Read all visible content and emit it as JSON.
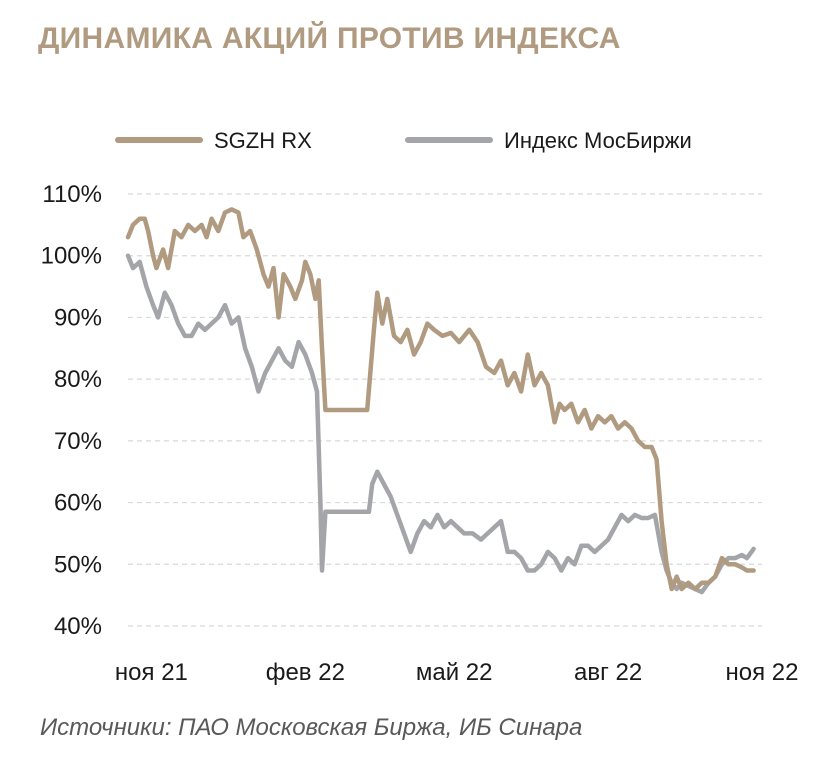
{
  "title": "ДИНАМИКА АКЦИЙ ПРОТИВ ИНДЕКСА",
  "source": "Источники: ПАО Московская Биржа, ИБ Синара",
  "colors": {
    "title": "#b09a80",
    "sgzh": "#b09a80",
    "index": "#a3a5a8",
    "grid": "#d9d9d9"
  },
  "chart_data": {
    "type": "line",
    "title": "ДИНАМИКА АКЦИЙ ПРОТИВ ИНДЕКСА",
    "xlabel": "",
    "ylabel": "",
    "ylim": [
      40,
      110
    ],
    "y_ticks": [
      40,
      50,
      60,
      70,
      80,
      90,
      100,
      110
    ],
    "y_tick_labels": [
      "40%",
      "50%",
      "60%",
      "70%",
      "80%",
      "90%",
      "100%",
      "110%"
    ],
    "x_range": [
      "2021-11-01",
      "2022-11-15"
    ],
    "x_ticks": [
      "2021-11-15",
      "2022-02-15",
      "2022-05-15",
      "2022-08-15",
      "2022-11-15"
    ],
    "x_tick_labels": [
      "ноя 21",
      "фев 22",
      "май 22",
      "авг 22",
      "ноя 22"
    ],
    "grid": "horizontal",
    "legend_position": "top",
    "series": [
      {
        "name": "SGZH RX",
        "color": "#b09a80",
        "points": [
          [
            "2021-11-01",
            103
          ],
          [
            "2021-11-04",
            105
          ],
          [
            "2021-11-08",
            106
          ],
          [
            "2021-11-11",
            106
          ],
          [
            "2021-11-13",
            104
          ],
          [
            "2021-11-16",
            100
          ],
          [
            "2021-11-18",
            98
          ],
          [
            "2021-11-22",
            101
          ],
          [
            "2021-11-25",
            98
          ],
          [
            "2021-11-29",
            104
          ],
          [
            "2021-12-03",
            103
          ],
          [
            "2021-12-07",
            105
          ],
          [
            "2021-12-11",
            104
          ],
          [
            "2021-12-15",
            105
          ],
          [
            "2021-12-18",
            103
          ],
          [
            "2021-12-21",
            106
          ],
          [
            "2021-12-25",
            104
          ],
          [
            "2021-12-29",
            107
          ],
          [
            "2022-01-02",
            107.5
          ],
          [
            "2022-01-06",
            107
          ],
          [
            "2022-01-09",
            103
          ],
          [
            "2022-01-13",
            104
          ],
          [
            "2022-01-17",
            101
          ],
          [
            "2022-01-21",
            97
          ],
          [
            "2022-01-24",
            95
          ],
          [
            "2022-01-27",
            98
          ],
          [
            "2022-01-30",
            90
          ],
          [
            "2022-02-02",
            97
          ],
          [
            "2022-02-06",
            95
          ],
          [
            "2022-02-09",
            93
          ],
          [
            "2022-02-13",
            96
          ],
          [
            "2022-02-15",
            99
          ],
          [
            "2022-02-18",
            97
          ],
          [
            "2022-02-21",
            93
          ],
          [
            "2022-02-23",
            96
          ],
          [
            "2022-02-25",
            85
          ],
          [
            "2022-02-27",
            75
          ],
          [
            "2022-03-05",
            75
          ],
          [
            "2022-03-15",
            75
          ],
          [
            "2022-03-24",
            75
          ],
          [
            "2022-03-28",
            88
          ],
          [
            "2022-03-30",
            94
          ],
          [
            "2022-04-02",
            89
          ],
          [
            "2022-04-05",
            93
          ],
          [
            "2022-04-09",
            87
          ],
          [
            "2022-04-13",
            86
          ],
          [
            "2022-04-17",
            88
          ],
          [
            "2022-04-21",
            84
          ],
          [
            "2022-04-25",
            86
          ],
          [
            "2022-04-29",
            89
          ],
          [
            "2022-05-03",
            88
          ],
          [
            "2022-05-08",
            87
          ],
          [
            "2022-05-13",
            87.5
          ],
          [
            "2022-05-18",
            86
          ],
          [
            "2022-05-24",
            88
          ],
          [
            "2022-05-29",
            86
          ],
          [
            "2022-06-03",
            82
          ],
          [
            "2022-06-08",
            81
          ],
          [
            "2022-06-12",
            83
          ],
          [
            "2022-06-16",
            79
          ],
          [
            "2022-06-20",
            81
          ],
          [
            "2022-06-24",
            78
          ],
          [
            "2022-06-28",
            84
          ],
          [
            "2022-07-02",
            79
          ],
          [
            "2022-07-06",
            81
          ],
          [
            "2022-07-10",
            79
          ],
          [
            "2022-07-14",
            73
          ],
          [
            "2022-07-17",
            76
          ],
          [
            "2022-07-20",
            75
          ],
          [
            "2022-07-24",
            76
          ],
          [
            "2022-07-28",
            73
          ],
          [
            "2022-08-01",
            75
          ],
          [
            "2022-08-05",
            72
          ],
          [
            "2022-08-09",
            74
          ],
          [
            "2022-08-13",
            73
          ],
          [
            "2022-08-17",
            74
          ],
          [
            "2022-08-21",
            72
          ],
          [
            "2022-08-25",
            73
          ],
          [
            "2022-08-29",
            72
          ],
          [
            "2022-09-02",
            70
          ],
          [
            "2022-09-06",
            69
          ],
          [
            "2022-09-10",
            69
          ],
          [
            "2022-09-13",
            67
          ],
          [
            "2022-09-16",
            57
          ],
          [
            "2022-09-19",
            50
          ],
          [
            "2022-09-22",
            46
          ],
          [
            "2022-09-25",
            48
          ],
          [
            "2022-09-28",
            46
          ],
          [
            "2022-10-02",
            47
          ],
          [
            "2022-10-06",
            46
          ],
          [
            "2022-10-10",
            47
          ],
          [
            "2022-10-14",
            47
          ],
          [
            "2022-10-18",
            48
          ],
          [
            "2022-10-22",
            51
          ],
          [
            "2022-10-26",
            50
          ],
          [
            "2022-10-30",
            50
          ],
          [
            "2022-11-03",
            49.5
          ],
          [
            "2022-11-06",
            49
          ],
          [
            "2022-11-10",
            49
          ]
        ]
      },
      {
        "name": "Индекс МосБиржи",
        "color": "#a3a5a8",
        "points": [
          [
            "2021-11-01",
            100
          ],
          [
            "2021-11-04",
            98
          ],
          [
            "2021-11-08",
            99
          ],
          [
            "2021-11-12",
            95
          ],
          [
            "2021-11-16",
            92
          ],
          [
            "2021-11-19",
            90
          ],
          [
            "2021-11-23",
            94
          ],
          [
            "2021-11-27",
            92
          ],
          [
            "2021-12-01",
            89
          ],
          [
            "2021-12-05",
            87
          ],
          [
            "2021-12-09",
            87
          ],
          [
            "2021-12-13",
            89
          ],
          [
            "2021-12-17",
            88
          ],
          [
            "2021-12-21",
            89
          ],
          [
            "2021-12-25",
            90
          ],
          [
            "2021-12-29",
            92
          ],
          [
            "2022-01-02",
            89
          ],
          [
            "2022-01-06",
            90
          ],
          [
            "2022-01-10",
            85
          ],
          [
            "2022-01-14",
            82
          ],
          [
            "2022-01-18",
            78
          ],
          [
            "2022-01-22",
            81
          ],
          [
            "2022-01-26",
            83
          ],
          [
            "2022-01-30",
            85
          ],
          [
            "2022-02-03",
            83
          ],
          [
            "2022-02-07",
            82
          ],
          [
            "2022-02-11",
            86
          ],
          [
            "2022-02-15",
            84
          ],
          [
            "2022-02-19",
            81
          ],
          [
            "2022-02-22",
            78
          ],
          [
            "2022-02-24",
            60
          ],
          [
            "2022-02-25",
            49
          ],
          [
            "2022-02-27",
            58.5
          ],
          [
            "2022-03-10",
            58.5
          ],
          [
            "2022-03-20",
            58.5
          ],
          [
            "2022-03-25",
            58.5
          ],
          [
            "2022-03-27",
            63
          ],
          [
            "2022-03-30",
            65
          ],
          [
            "2022-04-03",
            63
          ],
          [
            "2022-04-07",
            61
          ],
          [
            "2022-04-11",
            58
          ],
          [
            "2022-04-15",
            55
          ],
          [
            "2022-04-19",
            52
          ],
          [
            "2022-04-23",
            55
          ],
          [
            "2022-04-27",
            57
          ],
          [
            "2022-05-01",
            56
          ],
          [
            "2022-05-05",
            58
          ],
          [
            "2022-05-09",
            56
          ],
          [
            "2022-05-13",
            57
          ],
          [
            "2022-05-17",
            56
          ],
          [
            "2022-05-21",
            55
          ],
          [
            "2022-05-26",
            55
          ],
          [
            "2022-05-31",
            54
          ],
          [
            "2022-06-04",
            55
          ],
          [
            "2022-06-08",
            56
          ],
          [
            "2022-06-12",
            57
          ],
          [
            "2022-06-16",
            52
          ],
          [
            "2022-06-20",
            52
          ],
          [
            "2022-06-24",
            51
          ],
          [
            "2022-06-28",
            49
          ],
          [
            "2022-07-02",
            49
          ],
          [
            "2022-07-06",
            50
          ],
          [
            "2022-07-10",
            52
          ],
          [
            "2022-07-14",
            51
          ],
          [
            "2022-07-18",
            49
          ],
          [
            "2022-07-22",
            51
          ],
          [
            "2022-07-26",
            50
          ],
          [
            "2022-07-30",
            53
          ],
          [
            "2022-08-03",
            53
          ],
          [
            "2022-08-07",
            52
          ],
          [
            "2022-08-11",
            53
          ],
          [
            "2022-08-15",
            54
          ],
          [
            "2022-08-19",
            56
          ],
          [
            "2022-08-23",
            58
          ],
          [
            "2022-08-27",
            57
          ],
          [
            "2022-08-31",
            58
          ],
          [
            "2022-09-04",
            57.5
          ],
          [
            "2022-09-08",
            57.5
          ],
          [
            "2022-09-12",
            58
          ],
          [
            "2022-09-16",
            52
          ],
          [
            "2022-09-19",
            49
          ],
          [
            "2022-09-22",
            47
          ],
          [
            "2022-09-25",
            46
          ],
          [
            "2022-09-28",
            47
          ],
          [
            "2022-10-02",
            46.5
          ],
          [
            "2022-10-06",
            46
          ],
          [
            "2022-10-10",
            45.5
          ],
          [
            "2022-10-14",
            47
          ],
          [
            "2022-10-18",
            48
          ],
          [
            "2022-10-22",
            50
          ],
          [
            "2022-10-26",
            51
          ],
          [
            "2022-10-30",
            51
          ],
          [
            "2022-11-03",
            51.5
          ],
          [
            "2022-11-06",
            51
          ],
          [
            "2022-11-10",
            52.5
          ]
        ]
      }
    ]
  }
}
